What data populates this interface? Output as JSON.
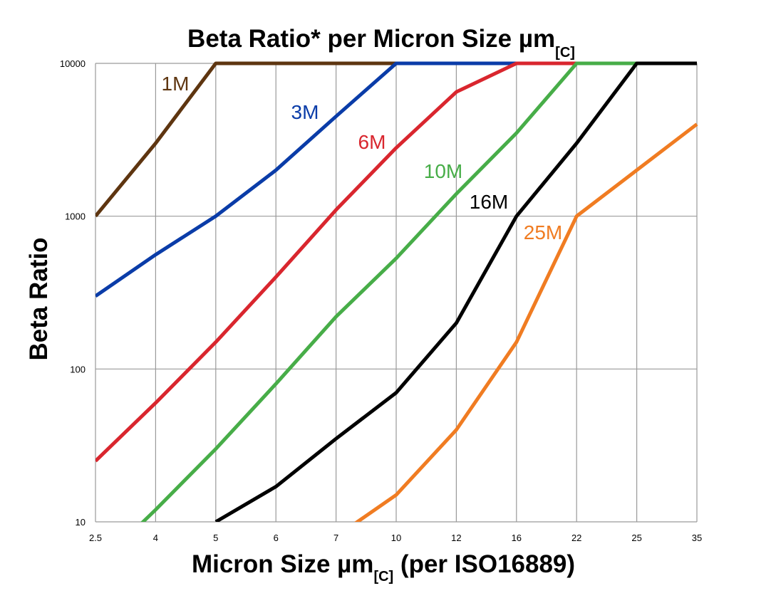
{
  "chart_data": {
    "type": "line",
    "title": "Beta Ratio* per Micron Size µm",
    "title_subscript": "[C]",
    "xlabel": "Micron Size µm",
    "xlabel_subscript": "[C]",
    "xlabel_suffix": " (per ISO16889)",
    "ylabel": "Beta Ratio",
    "y_scale": "log",
    "ylim": [
      10,
      10000
    ],
    "y_ticks": [
      "10",
      "100",
      "1000",
      "10000"
    ],
    "grid": true,
    "categories": [
      "2.5",
      "4",
      "5",
      "6",
      "7",
      "10",
      "12",
      "16",
      "22",
      "25",
      "35"
    ],
    "series": [
      {
        "name": "1M",
        "color": "#5e3510",
        "values": [
          1000,
          3000,
          10000,
          10000,
          10000,
          10000,
          10000,
          10000,
          10000,
          10000,
          10000
        ]
      },
      {
        "name": "3M",
        "color": "#0a3ca8",
        "values": [
          300,
          560,
          1000,
          2000,
          4500,
          10000,
          10000,
          10000,
          10000,
          10000,
          10000
        ]
      },
      {
        "name": "6M",
        "color": "#d9262e",
        "values": [
          25,
          60,
          150,
          400,
          1100,
          2800,
          6500,
          10000,
          10000,
          10000,
          10000
        ]
      },
      {
        "name": "10M",
        "color": "#47ad48",
        "values": [
          5,
          12,
          30,
          80,
          220,
          530,
          1400,
          3500,
          10000,
          10000,
          10000
        ]
      },
      {
        "name": "16M",
        "color": "#000000",
        "values": [
          null,
          null,
          10,
          17,
          35,
          70,
          200,
          1000,
          3000,
          10000,
          10000
        ]
      },
      {
        "name": "25M",
        "color": "#f07c22",
        "values": [
          null,
          null,
          null,
          null,
          8,
          15,
          40,
          150,
          1000,
          2000,
          4000
        ]
      }
    ]
  }
}
